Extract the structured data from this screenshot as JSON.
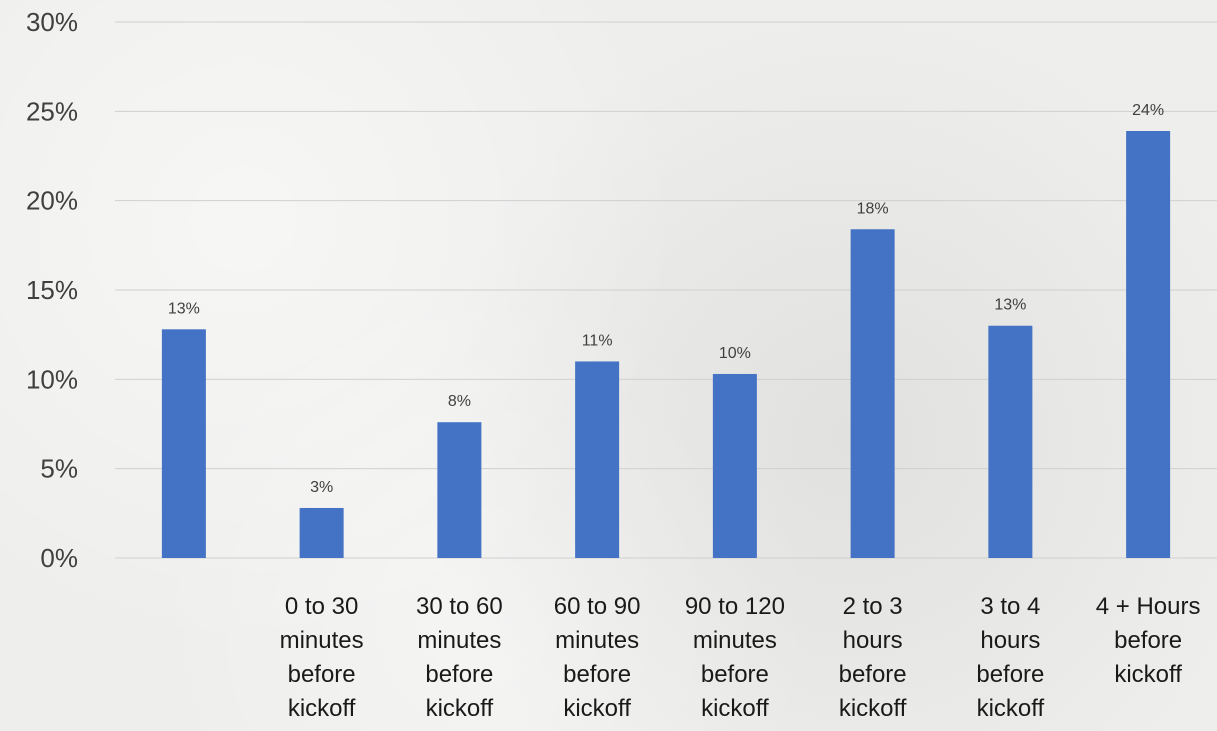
{
  "chart_data": {
    "type": "bar",
    "categories": [
      "",
      "0 to 30 minutes before kickoff",
      "30 to 60 minutes before kickoff",
      "60 to 90 minutes before kickoff",
      "90 to 120 minutes before kickoff",
      "2 to 3 hours before kickoff",
      "3 to 4 hours before kickoff",
      "4 + Hours before kickoff"
    ],
    "category_lines": [
      [],
      [
        "0 to 30",
        "minutes",
        "before",
        "kickoff"
      ],
      [
        "30 to 60",
        "minutes",
        "before",
        "kickoff"
      ],
      [
        "60 to 90",
        "minutes",
        "before",
        "kickoff"
      ],
      [
        "90 to 120",
        "minutes",
        "before",
        "kickoff"
      ],
      [
        "2 to 3",
        "hours",
        "before",
        "kickoff"
      ],
      [
        "3 to 4",
        "hours",
        "before",
        "kickoff"
      ],
      [
        "4 + Hours",
        "before",
        "kickoff"
      ]
    ],
    "values": [
      12.8,
      2.8,
      7.6,
      11.0,
      10.3,
      18.4,
      13.0,
      23.9
    ],
    "data_labels": [
      "13%",
      "3%",
      "8%",
      "11%",
      "10%",
      "18%",
      "13%",
      "24%"
    ],
    "yticks": [
      "0%",
      "5%",
      "10%",
      "15%",
      "20%",
      "25%",
      "30%"
    ],
    "ylim": [
      0,
      30
    ],
    "grid": true,
    "bar_color": "#4472c4",
    "title": "",
    "xlabel": "",
    "ylabel": ""
  }
}
